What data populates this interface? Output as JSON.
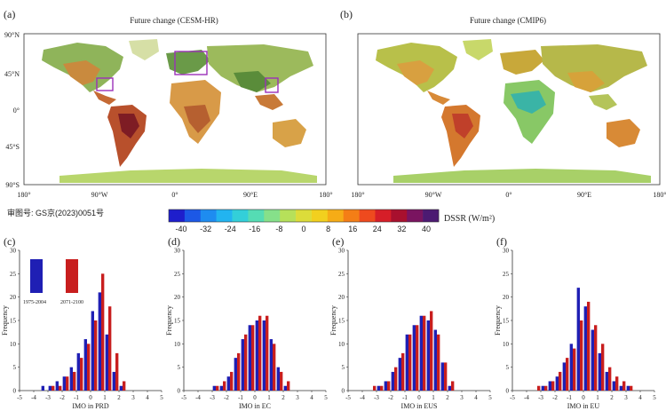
{
  "panel_a": {
    "letter": "(a)",
    "title": "Future change (CESM-HR)",
    "lat_labels": [
      "90°N",
      "45°N",
      "0°",
      "45°S",
      "90°S"
    ],
    "lon_labels": [
      "180°",
      "90°W",
      "0°",
      "90°E",
      "180°"
    ]
  },
  "panel_b": {
    "letter": "(b)",
    "title": "Future change (CMIP6)",
    "lon_labels": [
      "180°",
      "90°W",
      "0°",
      "90°E",
      "180°"
    ]
  },
  "map_note": "审图号: GS京(2023)0051号",
  "colorbar": {
    "ticks": [
      "-40",
      "-32",
      "-24",
      "-16",
      "-8",
      "0",
      "8",
      "16",
      "24",
      "32",
      "40"
    ],
    "label": "DSSR (W/m²)",
    "colors": [
      "#1e1ecc",
      "#1c58e6",
      "#1e8cf0",
      "#22b4f0",
      "#33cfd9",
      "#55dcb4",
      "#86e08a",
      "#b6e05a",
      "#dcdc3a",
      "#f2d01e",
      "#f6ac16",
      "#f47e16",
      "#ee4a1e",
      "#d61e28",
      "#a8102e",
      "#7a1460",
      "#4c1a72"
    ]
  },
  "colors": {
    "period1": "#1f1fb4",
    "period2": "#c81e1e"
  },
  "chart_data": [
    {
      "panel": "(c)",
      "type": "bar",
      "xlabel": "IMO in PRD",
      "ylabel": "Frequency",
      "xlim": [
        -5,
        5
      ],
      "ylim": [
        0,
        30
      ],
      "x_ticks": [
        "-5",
        "-4",
        "-3",
        "-2",
        "-1",
        "0",
        "1",
        "2",
        "3",
        "4",
        "5"
      ],
      "y_ticks": [
        "0",
        "5",
        "10",
        "15",
        "20",
        "25",
        "30"
      ],
      "legend": {
        "period1": "1975-2004",
        "period2": "2071-2100"
      },
      "categories": [
        -3.25,
        -2.75,
        -2.25,
        -1.75,
        -1.25,
        -0.75,
        -0.25,
        0.25,
        0.75,
        1.25,
        1.75,
        2.25
      ],
      "series": [
        {
          "name": "1975-2004",
          "values": [
            1,
            1,
            2,
            3,
            5,
            8,
            11,
            17,
            21,
            12,
            4,
            1
          ]
        },
        {
          "name": "2071-2100",
          "values": [
            0,
            1,
            1,
            3,
            4,
            7,
            10,
            15,
            25,
            18,
            8,
            2
          ]
        }
      ]
    },
    {
      "panel": "(d)",
      "type": "bar",
      "xlabel": "IMO in EC",
      "ylabel": "Frequency",
      "xlim": [
        -5,
        5
      ],
      "ylim": [
        0,
        30
      ],
      "x_ticks": [
        "-5",
        "-4",
        "-3",
        "-2",
        "-1",
        "0",
        "1",
        "2",
        "3",
        "4",
        "5"
      ],
      "y_ticks": [
        "0",
        "5",
        "10",
        "15",
        "20",
        "25",
        "30"
      ],
      "categories": [
        -3.25,
        -2.75,
        -2.25,
        -1.75,
        -1.25,
        -0.75,
        -0.25,
        0.25,
        0.75,
        1.25,
        1.75,
        2.25
      ],
      "series": [
        {
          "name": "1975-2004",
          "values": [
            0,
            1,
            1,
            3,
            7,
            11,
            14,
            15,
            15,
            11,
            5,
            1
          ]
        },
        {
          "name": "2071-2100",
          "values": [
            0,
            1,
            2,
            4,
            8,
            12,
            14,
            16,
            16,
            10,
            4,
            2
          ]
        }
      ]
    },
    {
      "panel": "(e)",
      "type": "bar",
      "xlabel": "IMO in EUS",
      "ylabel": "Frequency",
      "xlim": [
        -5,
        5
      ],
      "ylim": [
        0,
        30
      ],
      "x_ticks": [
        "-5",
        "-4",
        "-3",
        "-2",
        "-1",
        "0",
        "1",
        "2",
        "3",
        "4",
        "5"
      ],
      "y_ticks": [
        "0",
        "5",
        "10",
        "15",
        "20",
        "25",
        "30"
      ],
      "categories": [
        -3.25,
        -2.75,
        -2.25,
        -1.75,
        -1.25,
        -0.75,
        -0.25,
        0.25,
        0.75,
        1.25,
        1.75,
        2.25
      ],
      "series": [
        {
          "name": "1975-2004",
          "values": [
            0,
            1,
            2,
            4,
            7,
            12,
            14,
            16,
            15,
            13,
            6,
            1
          ]
        },
        {
          "name": "2071-2100",
          "values": [
            1,
            1,
            2,
            5,
            8,
            12,
            14,
            16,
            17,
            12,
            6,
            2
          ]
        }
      ]
    },
    {
      "panel": "(f)",
      "type": "bar",
      "xlabel": "IMO in EU",
      "ylabel": "Frequency",
      "xlim": [
        -5,
        5
      ],
      "ylim": [
        0,
        30
      ],
      "x_ticks": [
        "-5",
        "-4",
        "-3",
        "-2",
        "-1",
        "0",
        "1",
        "2",
        "3",
        "4",
        "5"
      ],
      "y_ticks": [
        "0",
        "5",
        "10",
        "15",
        "20",
        "25",
        "30"
      ],
      "categories": [
        -3.25,
        -2.75,
        -2.25,
        -1.75,
        -1.25,
        -0.75,
        -0.25,
        0.25,
        0.75,
        1.25,
        1.75,
        2.25,
        2.75,
        3.25
      ],
      "series": [
        {
          "name": "1975-2004",
          "values": [
            0,
            1,
            2,
            3,
            6,
            10,
            22,
            18,
            13,
            8,
            4,
            2,
            1,
            1
          ]
        },
        {
          "name": "2071-2100",
          "values": [
            1,
            1,
            2,
            4,
            7,
            9,
            15,
            19,
            14,
            10,
            5,
            3,
            2,
            1
          ]
        }
      ]
    }
  ]
}
